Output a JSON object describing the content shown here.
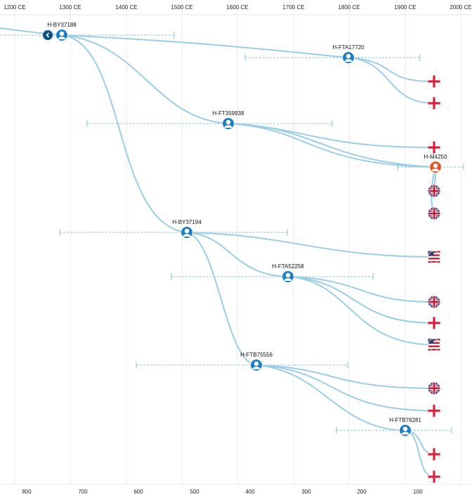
{
  "top_axis": {
    "ticks": [
      "1200 CE",
      "1300 CE",
      "1400 CE",
      "1500 CE",
      "1600 CE",
      "1700 CE",
      "1800 CE",
      "1900 CE",
      "2000 CE"
    ]
  },
  "bottom_axis": {
    "ticks": [
      "800",
      "700",
      "600",
      "500",
      "400",
      "300",
      "200",
      "100"
    ]
  },
  "nodes": [
    {
      "id": "H-BY37188",
      "label": "H-BY37188",
      "type": "user",
      "color": "#1f7fc4"
    },
    {
      "id": "H-FTA17720",
      "label": "H-FTA17720",
      "type": "user",
      "color": "#1f7fc4"
    },
    {
      "id": "H-FT359938",
      "label": "H-FT359938",
      "type": "user",
      "color": "#1f7fc4"
    },
    {
      "id": "H-M4250",
      "label": "H-M4250",
      "type": "user",
      "color": "#e3552b"
    },
    {
      "id": "H-BY37194",
      "label": "H-BY37194",
      "type": "user",
      "color": "#1f7fc4"
    },
    {
      "id": "H-FTA52258",
      "label": "H-FTA52258",
      "type": "user",
      "color": "#1f7fc4"
    },
    {
      "id": "H-FTB75556",
      "label": "H-FTB75556",
      "type": "user",
      "color": "#1f7fc4"
    },
    {
      "id": "H-FTB76281",
      "label": "H-FTB76281",
      "type": "user",
      "color": "#1f7fc4"
    }
  ],
  "leaves": [
    {
      "country": "England",
      "icon": "england-flag-icon"
    },
    {
      "country": "England",
      "icon": "england-flag-icon"
    },
    {
      "country": "England",
      "icon": "england-flag-icon"
    },
    {
      "country": "United Kingdom",
      "icon": "uk-flag-icon"
    },
    {
      "country": "United Kingdom",
      "icon": "uk-flag-icon"
    },
    {
      "country": "United States",
      "icon": "us-flag-icon"
    },
    {
      "country": "United Kingdom",
      "icon": "uk-flag-icon"
    },
    {
      "country": "England",
      "icon": "england-flag-icon"
    },
    {
      "country": "United States",
      "icon": "us-flag-icon"
    },
    {
      "country": "United Kingdom",
      "icon": "uk-flag-icon"
    },
    {
      "country": "England",
      "icon": "england-flag-icon"
    },
    {
      "country": "England",
      "icon": "england-flag-icon"
    },
    {
      "country": "England",
      "icon": "england-flag-icon"
    }
  ],
  "controls": {
    "collapse_icon": "chevron-left-icon"
  },
  "colors": {
    "branch": "#9ccde6",
    "node": "#1f7fc4",
    "highlight_node": "#e3552b",
    "collapse_button": "#0d4f86"
  }
}
